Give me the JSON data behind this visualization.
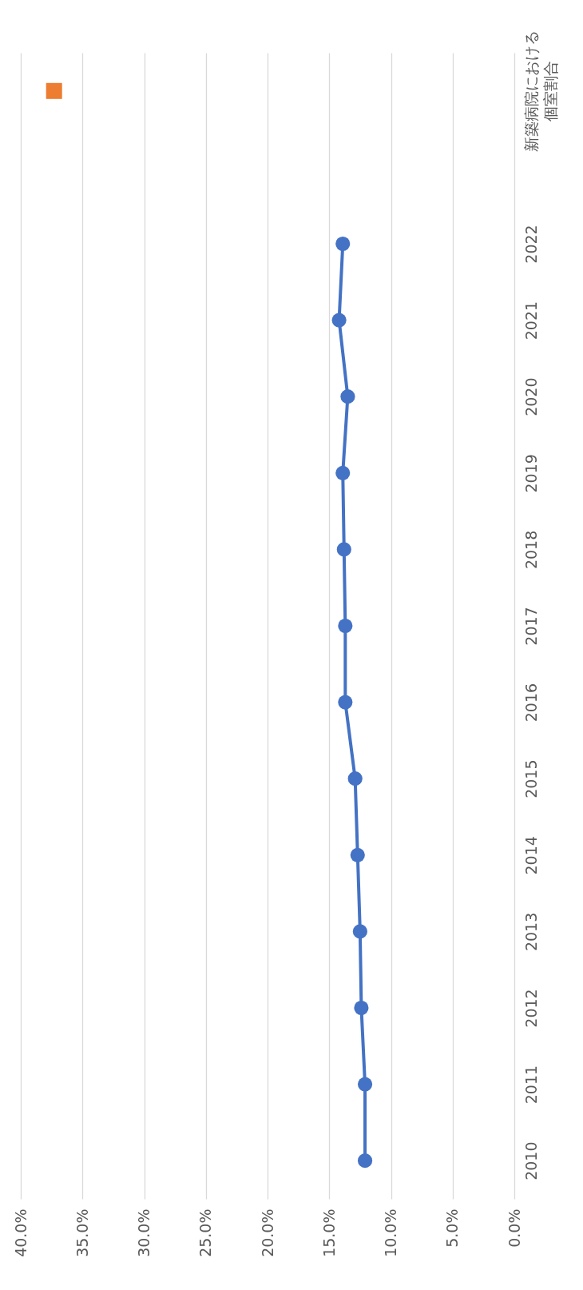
{
  "chart_data": {
    "type": "line",
    "orientation": "horizontal",
    "categories": [
      "新築病院における個室割合",
      null,
      "2022",
      "2021",
      "2020",
      "2019",
      "2018",
      "2017",
      "2016",
      "2015",
      "2014",
      "2013",
      "2012",
      "2011",
      "2010"
    ],
    "series": [
      {
        "type": "line",
        "color": "#4472c4",
        "marker": "circle",
        "values": [
          null,
          null,
          13.9,
          14.2,
          13.5,
          13.9,
          13.8,
          13.7,
          13.7,
          12.9,
          12.7,
          12.5,
          12.4,
          12.1,
          12.1
        ]
      },
      {
        "type": "scatter",
        "color": "#ed7d31",
        "marker": "square",
        "values": [
          37.3,
          null,
          null,
          null,
          null,
          null,
          null,
          null,
          null,
          null,
          null,
          null,
          null,
          null,
          null
        ]
      }
    ],
    "xlim": [
      40,
      0
    ],
    "xticks": [
      {
        "value": 0,
        "label": "0.0%"
      },
      {
        "value": 5,
        "label": "5.0%"
      },
      {
        "value": 10,
        "label": "10.0%"
      },
      {
        "value": 15,
        "label": "15.0%"
      },
      {
        "value": 20,
        "label": "20.0%"
      },
      {
        "value": 25,
        "label": "25.0%"
      },
      {
        "value": 30,
        "label": "30.0%"
      },
      {
        "value": 35,
        "label": "35.0%"
      },
      {
        "value": 40,
        "label": "40.0%"
      }
    ],
    "grid": "x"
  }
}
